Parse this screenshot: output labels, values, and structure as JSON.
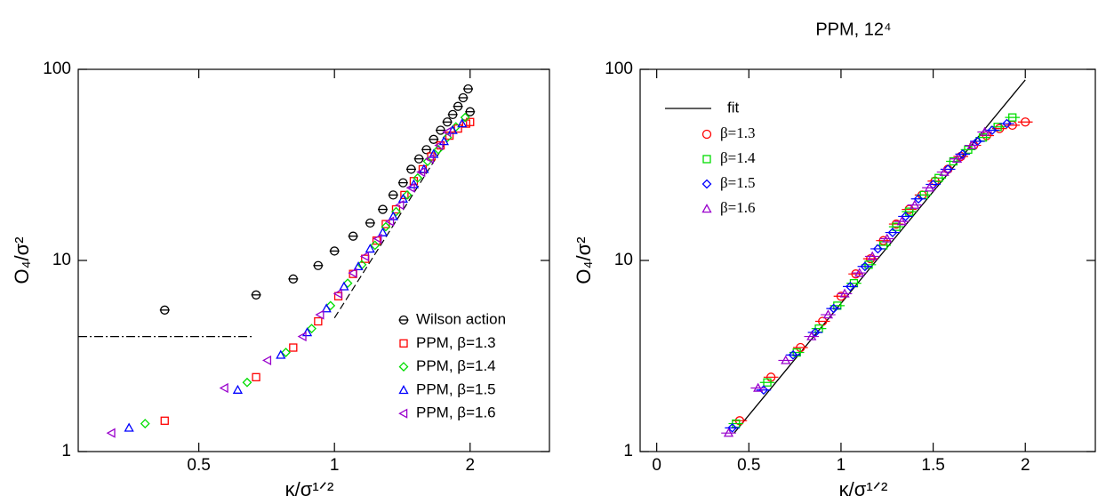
{
  "chart_data": [
    {
      "type": "scatter",
      "xlabel": "κ/σ¹ᐟ²",
      "ylabel": "O₄/σ²",
      "xlog": true,
      "ylog": true,
      "xlim": [
        0.27,
        3.0
      ],
      "ylim": [
        1,
        100
      ],
      "xticks": [
        0.5,
        1,
        2
      ],
      "yticks": [
        1,
        10,
        100
      ],
      "legend": "lower right",
      "series": [
        {
          "name": "Wilson action",
          "color": "#000000",
          "marker": "circle-bar",
          "x": [
            0.42,
            0.67,
            0.81,
            0.92,
            1.0,
            1.1,
            1.2,
            1.28,
            1.35,
            1.42,
            1.48,
            1.54,
            1.6,
            1.66,
            1.72,
            1.78,
            1.83,
            1.88,
            1.93,
            1.98,
            2.0
          ],
          "values": [
            5.5,
            6.6,
            8.0,
            9.4,
            11.2,
            13.4,
            15.7,
            18.5,
            22,
            25.5,
            30,
            34,
            38,
            43,
            48,
            53,
            58,
            64,
            71,
            79,
            60
          ]
        },
        {
          "name": "PPM, β=1.3",
          "color": "#ff0000",
          "marker": "square",
          "x": [
            0.42,
            0.67,
            0.81,
            0.92,
            1.02,
            1.1,
            1.17,
            1.24,
            1.3,
            1.37,
            1.43,
            1.5,
            1.57,
            1.64,
            1.72,
            1.8,
            1.88,
            1.96,
            2.0
          ],
          "values": [
            1.45,
            2.45,
            3.5,
            4.8,
            6.5,
            8.5,
            10.2,
            12.7,
            15.5,
            18.5,
            22,
            26,
            30,
            35,
            40,
            45,
            49,
            52,
            53
          ]
        },
        {
          "name": "PPM, β=1.4",
          "color": "#00dd00",
          "marker": "diamond",
          "x": [
            0.38,
            0.64,
            0.78,
            0.89,
            0.98,
            1.07,
            1.15,
            1.23,
            1.3,
            1.37,
            1.45,
            1.53,
            1.61,
            1.7,
            1.78,
            1.86,
            1.95
          ],
          "values": [
            1.4,
            2.3,
            3.3,
            4.4,
            5.8,
            7.6,
            9.5,
            12,
            15,
            18,
            22,
            27,
            33,
            38,
            44,
            50,
            56
          ]
        },
        {
          "name": "PPM, β=1.5",
          "color": "#0000ff",
          "marker": "triangle",
          "x": [
            0.35,
            0.61,
            0.76,
            0.87,
            0.96,
            1.05,
            1.13,
            1.2,
            1.28,
            1.35,
            1.42,
            1.5,
            1.58,
            1.66,
            1.75,
            1.83,
            1.92
          ],
          "values": [
            1.33,
            2.1,
            3.2,
            4.2,
            5.6,
            7.3,
            9.3,
            11.5,
            14,
            17,
            21,
            25,
            30,
            36,
            42,
            48,
            52
          ]
        },
        {
          "name": "PPM, β=1.6",
          "color": "#9900cc",
          "marker": "triangle-left",
          "x": [
            0.32,
            0.57,
            0.71,
            0.85,
            0.93,
            1.02,
            1.1,
            1.17,
            1.25,
            1.33,
            1.4,
            1.48,
            1.56,
            1.63,
            1.71,
            1.78
          ],
          "values": [
            1.25,
            2.15,
            3.0,
            4.0,
            5.2,
            6.7,
            8.6,
            10.5,
            13,
            16,
            19.5,
            24,
            29,
            34,
            40,
            47
          ]
        }
      ],
      "lines": [
        {
          "dash": "8 4",
          "x": [
            1.0,
            1.75
          ],
          "values": [
            5.0,
            40
          ]
        },
        {
          "dash": "10 3 2 3",
          "x": [
            0.27,
            0.66
          ],
          "values": [
            4,
            4
          ]
        }
      ]
    },
    {
      "type": "scatter",
      "title": "PPM, 12⁴",
      "xlabel": "κ/σ¹ᐟ²",
      "ylabel": "O₄/σ²",
      "xlog": false,
      "ylog": true,
      "xlim": [
        -0.09,
        2.38
      ],
      "ylim": [
        1,
        100
      ],
      "xticks": [
        0,
        0.5,
        1,
        1.5,
        2
      ],
      "yticks": [
        1,
        10,
        100
      ],
      "legend": "upper left",
      "fit": {
        "name": "fit",
        "color": "#000000",
        "x": [
          0.42,
          2.0
        ],
        "values": [
          1.25,
          88
        ]
      },
      "series": [
        {
          "name": "β=1.3",
          "color": "#ff0000",
          "marker": "circle",
          "xerr": 0.04,
          "x": [
            0.45,
            0.62,
            0.78,
            0.9,
            1.0,
            1.08,
            1.16,
            1.23,
            1.3,
            1.37,
            1.44,
            1.51,
            1.58,
            1.65,
            1.72,
            1.79,
            1.86,
            1.93,
            2.0
          ],
          "values": [
            1.45,
            2.45,
            3.5,
            4.8,
            6.5,
            8.5,
            10.2,
            12.7,
            15.5,
            18.5,
            22,
            26,
            30,
            35,
            40,
            45,
            49,
            51,
            53
          ]
        },
        {
          "name": "β=1.4",
          "color": "#00dd00",
          "marker": "square",
          "xerr": 0.04,
          "x": [
            0.43,
            0.6,
            0.76,
            0.88,
            0.98,
            1.07,
            1.15,
            1.23,
            1.3,
            1.37,
            1.45,
            1.53,
            1.61,
            1.69,
            1.77,
            1.85,
            1.93
          ],
          "values": [
            1.4,
            2.3,
            3.3,
            4.4,
            5.8,
            7.6,
            9.5,
            12,
            15,
            18,
            22,
            27,
            33,
            38,
            44,
            50,
            56
          ]
        },
        {
          "name": "β=1.5",
          "color": "#0000ff",
          "marker": "diamond",
          "xerr": 0.04,
          "x": [
            0.41,
            0.58,
            0.74,
            0.86,
            0.96,
            1.05,
            1.13,
            1.2,
            1.28,
            1.35,
            1.42,
            1.5,
            1.58,
            1.66,
            1.74,
            1.82,
            1.9
          ],
          "values": [
            1.33,
            2.1,
            3.2,
            4.2,
            5.6,
            7.3,
            9.3,
            11.5,
            14,
            17,
            21,
            25,
            30,
            36,
            42,
            48,
            52
          ]
        },
        {
          "name": "β=1.6",
          "color": "#9900cc",
          "marker": "triangle",
          "xerr": 0.04,
          "x": [
            0.39,
            0.55,
            0.7,
            0.84,
            0.93,
            1.02,
            1.1,
            1.17,
            1.25,
            1.33,
            1.4,
            1.48,
            1.56,
            1.63,
            1.71,
            1.78
          ],
          "values": [
            1.25,
            2.15,
            3.0,
            4.0,
            5.2,
            6.7,
            8.6,
            10.5,
            13,
            16,
            19.5,
            24,
            29,
            34,
            40,
            47
          ]
        }
      ]
    }
  ]
}
